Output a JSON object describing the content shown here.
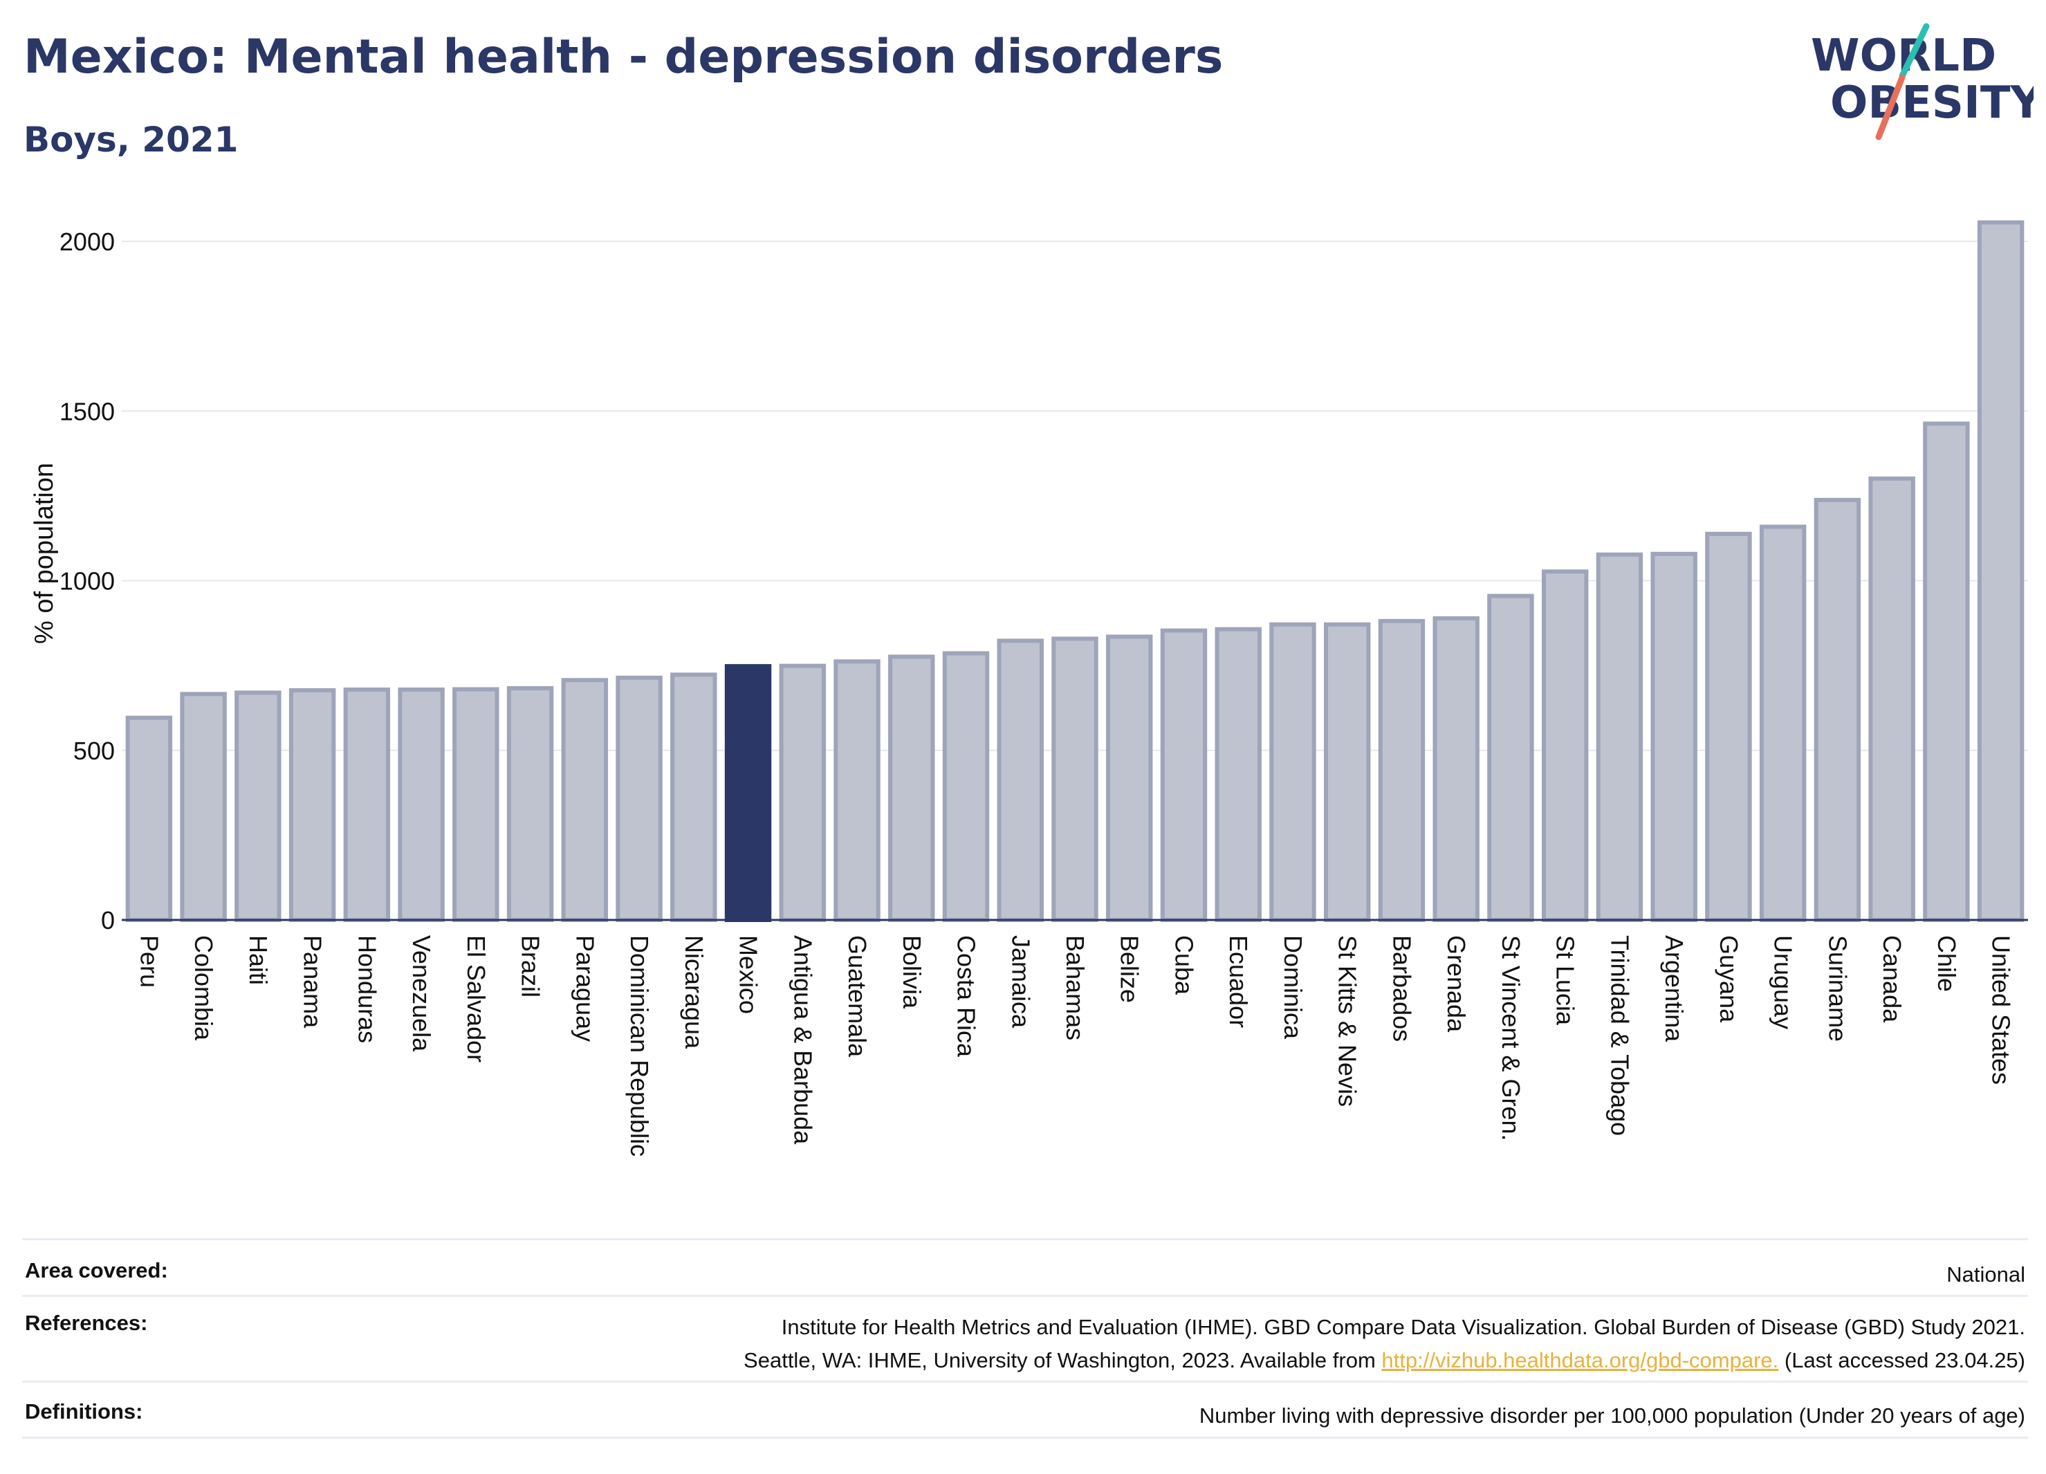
{
  "header": {
    "title": "Mexico: Mental health - depression disorders",
    "subtitle": "Boys, 2021"
  },
  "logo": {
    "line1": "WORLD",
    "line2": "OBESITY",
    "accent_teal": "#2bbfb4",
    "accent_coral": "#e8705a"
  },
  "chart_data": {
    "type": "bar",
    "ylabel": "% of population",
    "ylim": [
      0,
      2100
    ],
    "yticks": [
      0,
      500,
      1000,
      1500,
      2000
    ],
    "grid": true,
    "highlight": "Mexico",
    "colors": {
      "bar": "#bfc3d0",
      "bar_edge": "#9ea4b9",
      "highlight": "#2b3766"
    },
    "categories": [
      "Peru",
      "Colombia",
      "Haiti",
      "Panama",
      "Honduras",
      "Venezuela",
      "El Salvador",
      "Brazil",
      "Paraguay",
      "Dominican Republic",
      "Nicaragua",
      "Mexico",
      "Antigua & Barbuda",
      "Guatemala",
      "Bolivia",
      "Costa Rica",
      "Jamaica",
      "Bahamas",
      "Belize",
      "Cuba",
      "Ecuador",
      "Dominica",
      "St Kitts & Nevis",
      "Barbados",
      "Grenada",
      "St Vincent & Gren.",
      "St Lucia",
      "Trinidad & Tobago",
      "Argentina",
      "Guyana",
      "Uruguay",
      "Suriname",
      "Canada",
      "Chile",
      "United States"
    ],
    "values": [
      596,
      666,
      670,
      677,
      679,
      679,
      680,
      683,
      707,
      714,
      723,
      748,
      749,
      762,
      776,
      786,
      823,
      829,
      835,
      853,
      857,
      871,
      871,
      881,
      889,
      955,
      1027,
      1077,
      1079,
      1138,
      1159,
      1238,
      1301,
      1463,
      2056
    ]
  },
  "footer": {
    "area_label": "Area covered:",
    "area_value": "National",
    "ref_label": "References:",
    "ref_line1": "Institute for Health Metrics and Evaluation (IHME). GBD Compare Data Visualization. Global Burden of Disease (GBD) Study 2021.",
    "ref_line2_pre": "Seattle, WA: IHME, University of Washington, 2023. Available from ",
    "ref_link": "http://vizhub.healthdata.org/gbd-compare.",
    "ref_line2_post": " (Last accessed 23.04.25)",
    "def_label": "Definitions:",
    "def_value": "Number living with depressive disorder per 100,000 population (Under 20 years of age)"
  }
}
